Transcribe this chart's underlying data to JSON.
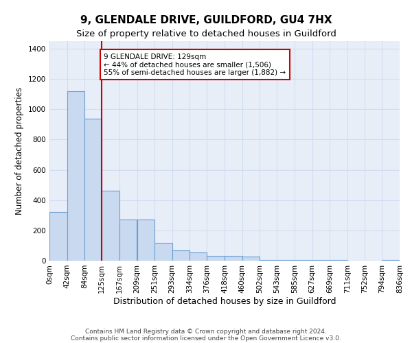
{
  "title1": "9, GLENDALE DRIVE, GUILDFORD, GU4 7HX",
  "title2": "Size of property relative to detached houses in Guildford",
  "xlabel": "Distribution of detached houses by size in Guildford",
  "ylabel": "Number of detached properties",
  "bar_values": [
    320,
    1120,
    940,
    460,
    270,
    270,
    120,
    70,
    55,
    30,
    30,
    25,
    5,
    5,
    5,
    5,
    5,
    0,
    0,
    5
  ],
  "bin_edges": [
    0,
    42,
    84,
    125,
    167,
    209,
    251,
    293,
    334,
    376,
    418,
    460,
    502,
    543,
    585,
    627,
    669,
    711,
    752,
    794,
    836
  ],
  "bar_color": "#c9d9f0",
  "bar_edge_color": "#6b9fd4",
  "vline_x": 125,
  "vline_color": "#cc0000",
  "annotation_text": "9 GLENDALE DRIVE: 129sqm\n← 44% of detached houses are smaller (1,506)\n55% of semi-detached houses are larger (1,882) →",
  "annotation_box_color": "#ffffff",
  "annotation_box_edge_color": "#cc0000",
  "ylim": [
    0,
    1450
  ],
  "yticks": [
    0,
    200,
    400,
    600,
    800,
    1000,
    1200,
    1400
  ],
  "xtick_labels": [
    "0sqm",
    "42sqm",
    "84sqm",
    "125sqm",
    "167sqm",
    "209sqm",
    "251sqm",
    "293sqm",
    "334sqm",
    "376sqm",
    "418sqm",
    "460sqm",
    "502sqm",
    "543sqm",
    "585sqm",
    "627sqm",
    "669sqm",
    "711sqm",
    "752sqm",
    "794sqm",
    "836sqm"
  ],
  "footer_line1": "Contains HM Land Registry data © Crown copyright and database right 2024.",
  "footer_line2": "Contains public sector information licensed under the Open Government Licence v3.0.",
  "grid_color": "#d0ddf0",
  "background_color": "#e8eef8",
  "title1_fontsize": 11,
  "title2_fontsize": 9.5,
  "tick_fontsize": 7.5,
  "ylabel_fontsize": 8.5,
  "xlabel_fontsize": 9,
  "annotation_fontsize": 7.5,
  "footer_fontsize": 6.5
}
